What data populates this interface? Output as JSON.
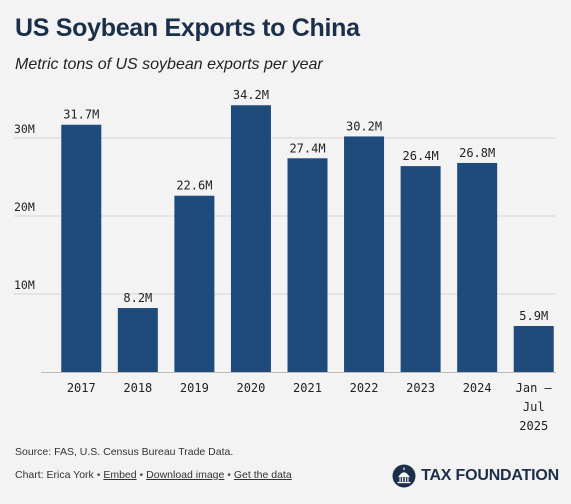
{
  "header": {
    "title": "US Soybean Exports to China",
    "subtitle": "Metric tons of US soybean exports per year"
  },
  "footer": {
    "source": "Source: FAS, U.S. Census Bureau Trade Data.",
    "chart_by": "Chart: Erica York",
    "links": [
      "Embed",
      "Download image",
      "Get the data"
    ],
    "separator": "•",
    "brand": "TAX FOUNDATION"
  },
  "colors": {
    "bar": "#1f4a7c",
    "title": "#1c2f4a",
    "background": "#f3f3f3",
    "grid": "#d4d4d4"
  },
  "icons": [
    "capitol-dome-icon"
  ],
  "chart_data": {
    "type": "bar",
    "title": "US Soybean Exports to China",
    "subtitle": "Metric tons of US soybean exports per year",
    "categories": [
      "2017",
      "2018",
      "2019",
      "2020",
      "2021",
      "2022",
      "2023",
      "2024",
      "Jan – Jul 2025"
    ],
    "category_lines": [
      [
        "2017"
      ],
      [
        "2018"
      ],
      [
        "2019"
      ],
      [
        "2020"
      ],
      [
        "2021"
      ],
      [
        "2022"
      ],
      [
        "2023"
      ],
      [
        "2024"
      ],
      [
        "Jan –",
        "Jul",
        "2025"
      ]
    ],
    "values": [
      31.7,
      8.2,
      22.6,
      34.2,
      27.4,
      30.2,
      26.4,
      26.8,
      5.9
    ],
    "data_labels": [
      "31.7M",
      "8.2M",
      "22.6M",
      "34.2M",
      "27.4M",
      "30.2M",
      "26.4M",
      "26.8M",
      "5.9M"
    ],
    "unit": "M",
    "yticks": [
      10,
      20,
      30
    ],
    "ytick_labels": [
      "10M",
      "20M",
      "30M"
    ],
    "ylim": [
      0,
      36
    ],
    "grid": true,
    "legend": "none",
    "xlabel": "",
    "ylabel": ""
  }
}
